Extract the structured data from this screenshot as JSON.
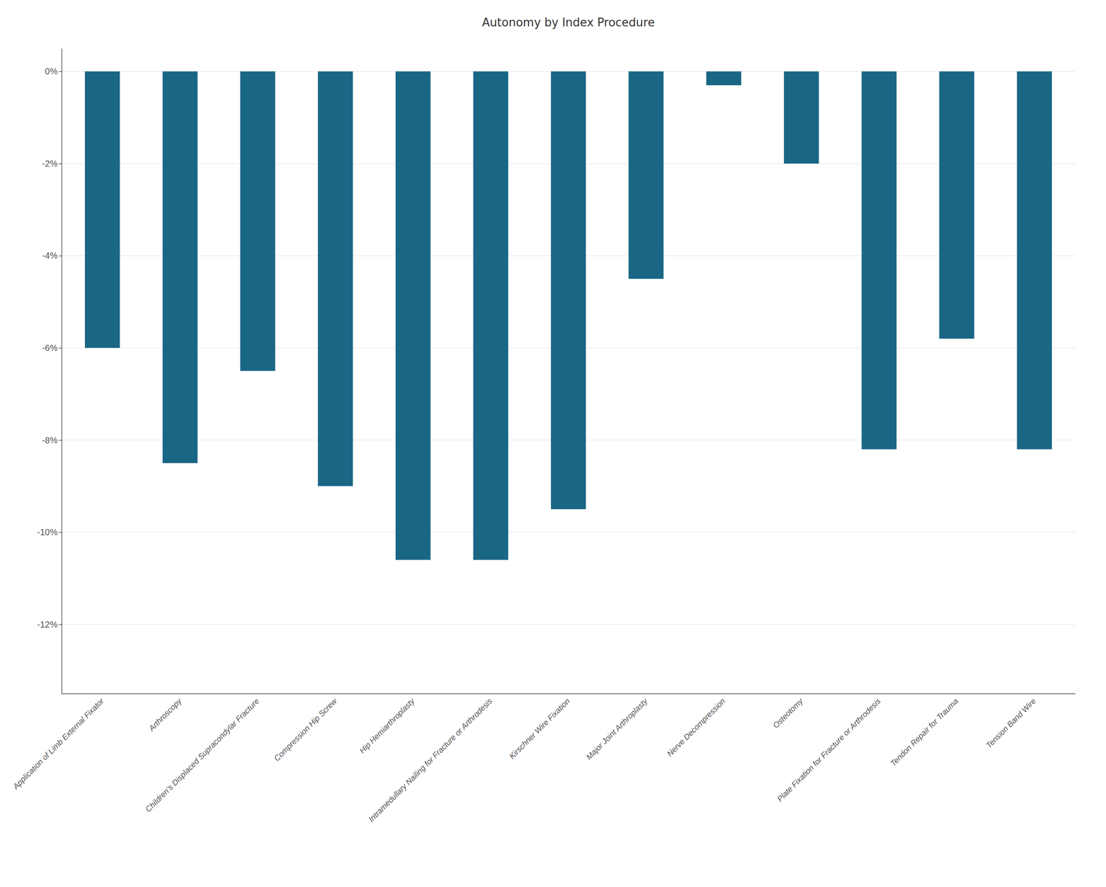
{
  "chart_data": {
    "type": "bar",
    "title": "Autonomy by Index Procedure",
    "categories": [
      "Application of Limb External Fixator",
      "Arthroscopy",
      "Children’s Displaced Supracondylar Fracture",
      "Compression Hip Screw",
      "Hip Hemiarthroplasty",
      "Intramedullary Nailing for Fracture or Arthrodesis",
      "Kirschner Wire Fixation",
      "Major Joint Arthroplasty",
      "Nerve Decompression",
      "Osteotomy",
      "Plate Fixation for Fracture or Arthrodesis",
      "Tendon Repair for Trauma",
      "Tension Band Wire"
    ],
    "values": [
      -0.06,
      -0.085,
      -0.065,
      -0.09,
      -0.106,
      -0.106,
      -0.095,
      -0.045,
      -0.003,
      -0.02,
      -0.082,
      -0.058,
      -0.082
    ],
    "color": "#1a6685",
    "ylim": [
      -0.135,
      0.005
    ],
    "yticks": [
      {
        "value": 0.0,
        "label": "0%"
      },
      {
        "value": -0.02,
        "label": "-2%"
      },
      {
        "value": -0.04,
        "label": "-4%"
      },
      {
        "value": -0.06,
        "label": "-6%"
      },
      {
        "value": -0.08,
        "label": "-8%"
      },
      {
        "value": -0.1,
        "label": "-10%"
      },
      {
        "value": -0.12,
        "label": "-12%"
      }
    ],
    "grid": true
  }
}
